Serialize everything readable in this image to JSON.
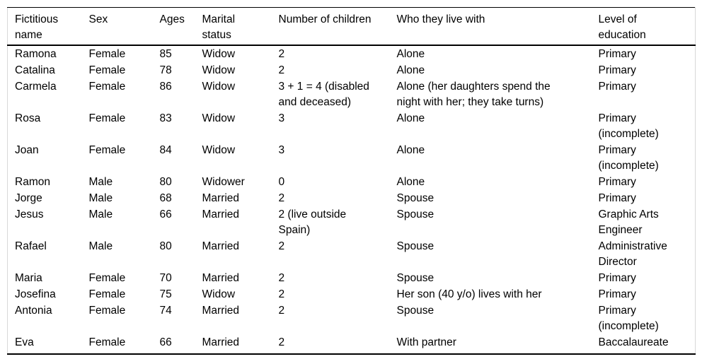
{
  "table": {
    "column_keys": [
      "fictitious-name",
      "sex",
      "ages",
      "marital-status",
      "number-of-children",
      "who-they-live-with",
      "level-of-education"
    ],
    "headers": [
      "Fictitious name",
      "Sex",
      "Ages",
      "Marital status",
      "Number of children",
      "Who they live with",
      "Level of education"
    ],
    "rows": [
      [
        "Ramona",
        "Female",
        "85",
        "Widow",
        "2",
        "Alone",
        "Primary"
      ],
      [
        "Catalina",
        "Female",
        "78",
        "Widow",
        "2",
        "Alone",
        "Primary"
      ],
      [
        "Carmela",
        "Female",
        "86",
        "Widow",
        "3 + 1 = 4 (disabled and deceased)",
        "Alone (her daughters spend the night with her; they take turns)",
        "Primary"
      ],
      [
        "Rosa",
        "Female",
        "83",
        "Widow",
        "3",
        "Alone",
        "Primary (incomplete)"
      ],
      [
        "Joan",
        "Female",
        "84",
        "Widow",
        "3",
        "Alone",
        "Primary (incomplete)"
      ],
      [
        "Ramon",
        "Male",
        "80",
        "Widower",
        "0",
        "Alone",
        "Primary"
      ],
      [
        "Jorge",
        "Male",
        "68",
        "Married",
        "2",
        "Spouse",
        "Primary"
      ],
      [
        "Jesus",
        "Male",
        "66",
        "Married",
        "2 (live outside Spain)",
        "Spouse",
        "Graphic Arts Engineer"
      ],
      [
        "Rafael",
        "Male",
        "80",
        "Married",
        "2",
        "Spouse",
        "Administrative Director"
      ],
      [
        "Maria",
        "Female",
        "70",
        "Married",
        "2",
        "Spouse",
        "Primary"
      ],
      [
        "Josefina",
        "Female",
        "75",
        "Widow",
        "2",
        "Her son (40 y/o) lives with her",
        "Primary"
      ],
      [
        "Antonia",
        "Female",
        "74",
        "Married",
        "2",
        "Spouse",
        "Primary (incomplete)"
      ],
      [
        "Eva",
        "Female",
        "66",
        "Married",
        "2",
        "With partner",
        "Baccalaureate"
      ]
    ]
  },
  "colors": {
    "text": "#000000",
    "rule_dark": "#000000",
    "frame_light": "#d8d8d8",
    "background": "#ffffff"
  }
}
